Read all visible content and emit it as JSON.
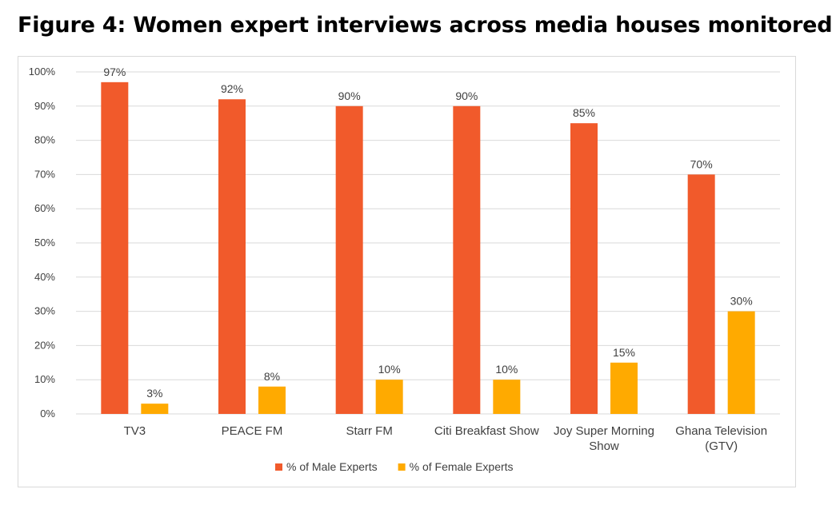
{
  "figure": {
    "title": "Figure 4: Women expert interviews across media houses monitored"
  },
  "chart_data": {
    "type": "bar",
    "categories": [
      [
        "TV3"
      ],
      [
        "PEACE FM"
      ],
      [
        "Starr FM"
      ],
      [
        "Citi Breakfast Show"
      ],
      [
        "Joy Super Morning",
        "Show"
      ],
      [
        "Ghana Television",
        "(GTV)"
      ]
    ],
    "series": [
      {
        "name": "% of Male Experts",
        "color": "#f15a2b",
        "values": [
          97,
          92,
          90,
          90,
          85,
          70
        ],
        "labels": [
          "97%",
          "92%",
          "90%",
          "90%",
          "85%",
          "70%"
        ]
      },
      {
        "name": "% of Female Experts",
        "color": "#ffaa00",
        "values": [
          3,
          8,
          10,
          10,
          15,
          30
        ],
        "labels": [
          "3%",
          "8%",
          "10%",
          "10%",
          "15%",
          "30%"
        ]
      }
    ],
    "ylim": [
      0,
      100
    ],
    "yticks": [
      "0%",
      "10%",
      "20%",
      "30%",
      "40%",
      "50%",
      "60%",
      "70%",
      "80%",
      "90%",
      "100%"
    ],
    "grid": true,
    "legend_position": "bottom",
    "gridline_color": "#d9d9d9"
  }
}
